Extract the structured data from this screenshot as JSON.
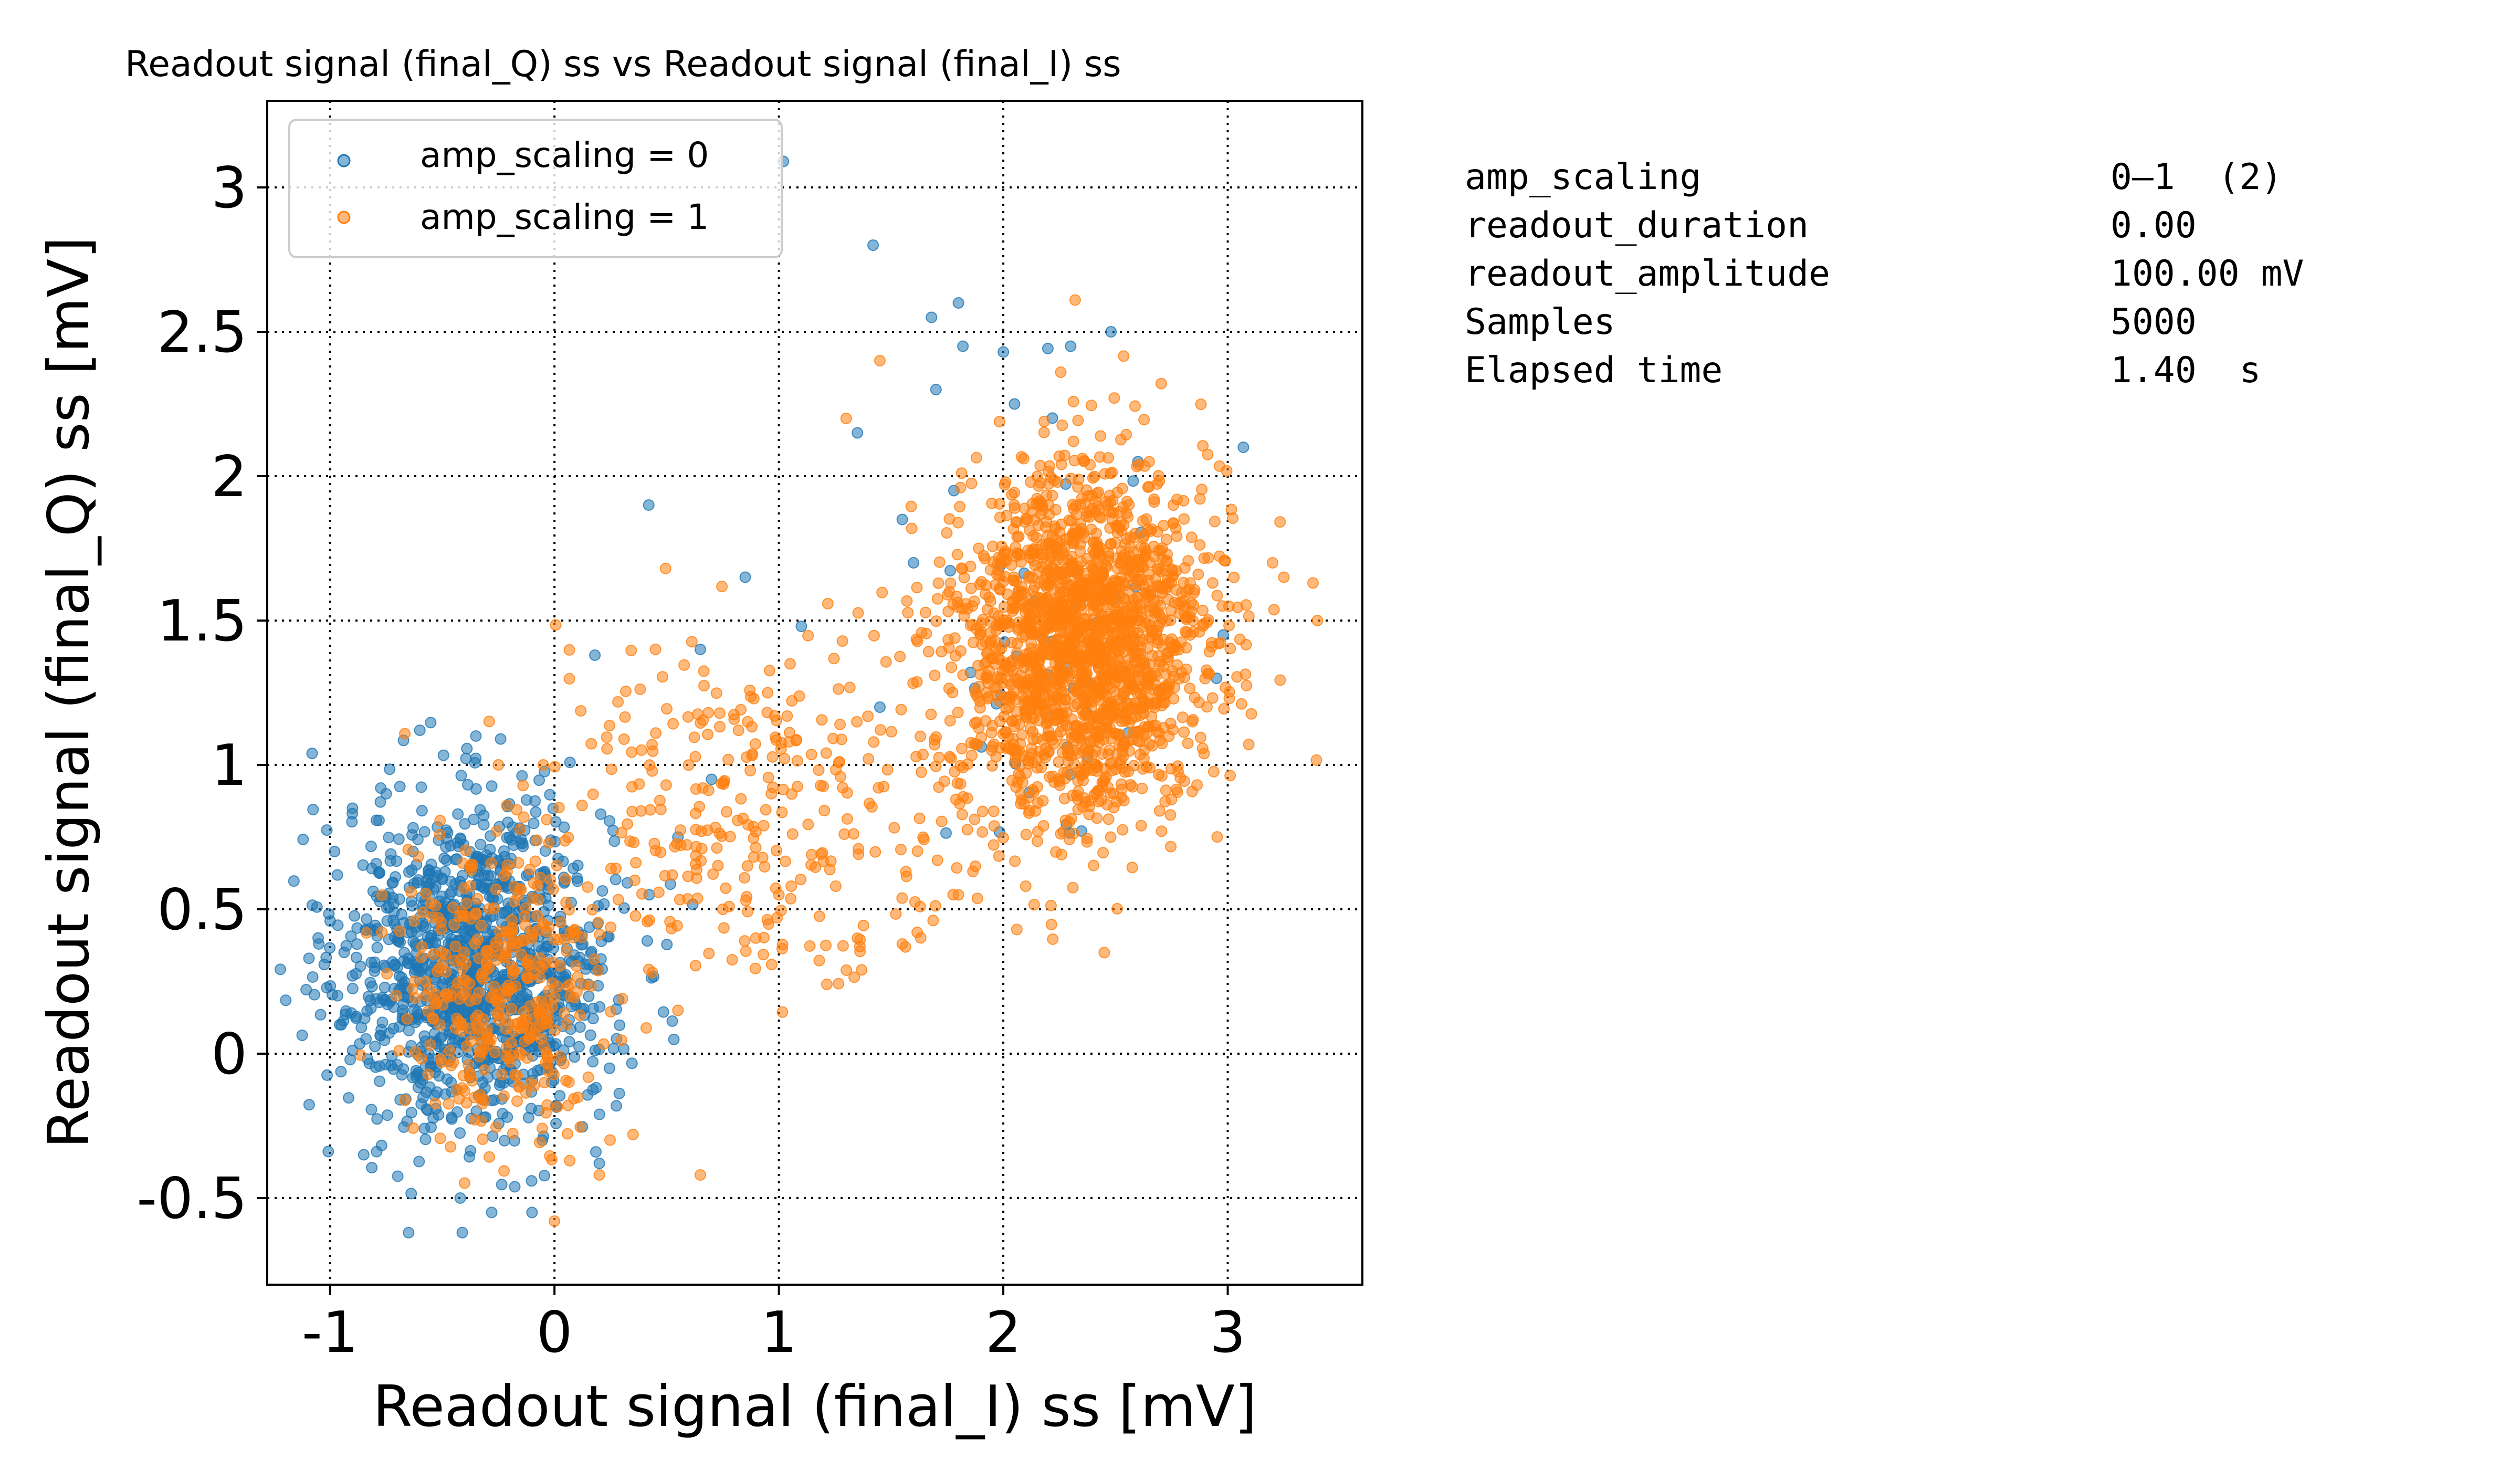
{
  "chart_data": {
    "type": "scatter",
    "title": "Readout signal (final_Q) ss vs Readout signal (final_I) ss",
    "xlabel": "Readout signal (final_I) ss [mV]",
    "ylabel": "Readout signal (final_Q) ss [mV]",
    "xlim": [
      -1.28,
      3.6
    ],
    "ylim": [
      -0.8,
      3.3
    ],
    "xticks": [
      -1,
      0,
      1,
      2,
      3
    ],
    "xtick_labels": [
      "-1",
      "0",
      "1",
      "2",
      "3"
    ],
    "yticks": [
      -0.5,
      0,
      0.5,
      1,
      1.5,
      2,
      2.5,
      3
    ],
    "ytick_labels": [
      "-0.5",
      "0",
      "0.5",
      "1",
      "1.5",
      "2",
      "2.5",
      "3"
    ],
    "grid": true,
    "legend_position": "top-left",
    "series": [
      {
        "name": "amp_scaling = 0",
        "color": "#1f77b4",
        "clusters": [
          {
            "center": [
              -0.35,
              0.3
            ],
            "std": [
              0.3,
              0.28
            ],
            "count": 1200
          },
          {
            "center": [
              2.25,
              1.4
            ],
            "std": [
              0.25,
              0.4
            ],
            "count": 40
          }
        ],
        "points": [
          [
            -1.08,
            1.04
          ],
          [
            -0.9,
            0.85
          ],
          [
            -0.98,
            0.7
          ],
          [
            -0.6,
            1.12
          ],
          [
            -0.35,
            1.1
          ],
          [
            0.18,
            1.38
          ],
          [
            0.42,
            1.9
          ],
          [
            0.65,
            1.4
          ],
          [
            0.85,
            1.65
          ],
          [
            1.02,
            3.09
          ],
          [
            1.42,
            2.8
          ],
          [
            1.68,
            2.55
          ],
          [
            1.8,
            2.6
          ],
          [
            1.82,
            2.45
          ],
          [
            2.05,
            2.25
          ],
          [
            2.0,
            2.43
          ],
          [
            2.3,
            2.45
          ],
          [
            2.48,
            2.5
          ],
          [
            2.6,
            2.05
          ],
          [
            3.07,
            2.1
          ],
          [
            2.98,
            1.45
          ],
          [
            2.95,
            1.3
          ],
          [
            0.7,
            0.95
          ],
          [
            0.55,
            0.75
          ],
          [
            1.1,
            1.48
          ],
          [
            1.45,
            1.2
          ],
          [
            -0.65,
            -0.62
          ],
          [
            -0.42,
            -0.5
          ],
          [
            -0.28,
            -0.55
          ],
          [
            -0.1,
            -0.55
          ],
          [
            0.2,
            -0.38
          ],
          [
            -0.85,
            -0.35
          ],
          [
            -0.95,
            0.1
          ],
          [
            -1.05,
            0.38
          ],
          [
            -0.75,
            0.9
          ],
          [
            1.6,
            1.7
          ],
          [
            1.78,
            1.95
          ],
          [
            1.55,
            1.85
          ],
          [
            1.35,
            2.15
          ],
          [
            1.7,
            2.3
          ]
        ]
      },
      {
        "name": "amp_scaling = 1",
        "color": "#ff7f0e",
        "clusters": [
          {
            "center": [
              2.35,
              1.42
            ],
            "std": [
              0.28,
              0.3
            ],
            "count": 1900
          },
          {
            "center": [
              -0.22,
              0.22
            ],
            "std": [
              0.22,
              0.24
            ],
            "count": 380
          },
          {
            "center": [
              0.9,
              0.85
            ],
            "std": [
              0.55,
              0.3
            ],
            "count": 330
          }
        ],
        "points": [
          [
            2.32,
            2.61
          ],
          [
            1.45,
            2.4
          ],
          [
            1.3,
            2.2
          ],
          [
            2.65,
            2.05
          ],
          [
            3.25,
            1.65
          ],
          [
            3.38,
            1.63
          ],
          [
            3.4,
            1.5
          ],
          [
            3.2,
            1.7
          ],
          [
            2.45,
            0.35
          ],
          [
            2.1,
            0.58
          ],
          [
            1.55,
            0.38
          ],
          [
            1.35,
            0.4
          ],
          [
            1.0,
            0.55
          ],
          [
            0.65,
            -0.42
          ],
          [
            0.2,
            -0.42
          ],
          [
            0.35,
            -0.28
          ],
          [
            -0.25,
            1.0
          ],
          [
            -0.05,
            1.0
          ],
          [
            0.0,
            -0.58
          ],
          [
            1.05,
            1.35
          ],
          [
            0.95,
            1.25
          ],
          [
            0.45,
            1.4
          ],
          [
            0.75,
            0.5
          ],
          [
            0.55,
            0.15
          ],
          [
            1.8,
            0.55
          ]
        ]
      }
    ]
  },
  "info_panel": {
    "rows": [
      {
        "key": "amp_scaling",
        "value": "0–1  (2)"
      },
      {
        "key": "readout_duration",
        "value": "0.00"
      },
      {
        "key": "readout_amplitude",
        "value": "100.00 mV"
      },
      {
        "key": "Samples",
        "value": "5000"
      },
      {
        "key": "Elapsed time",
        "value": "1.40  s"
      }
    ]
  }
}
